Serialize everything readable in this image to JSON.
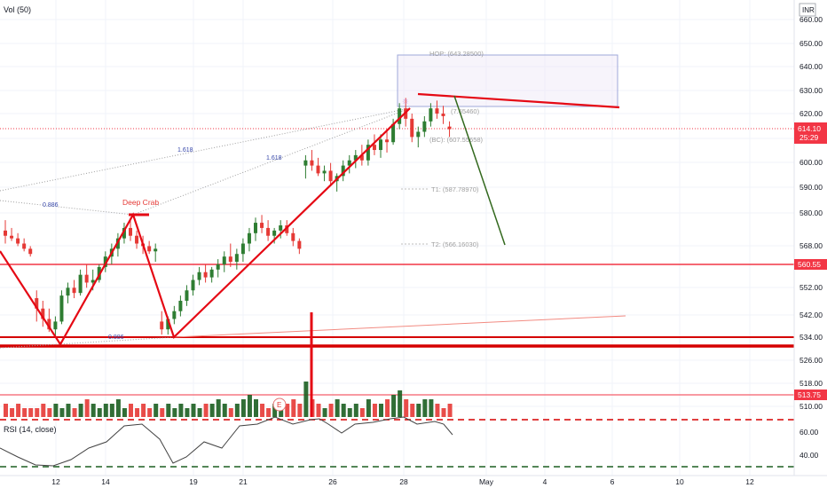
{
  "header": {
    "indicator_label": "Vol (50)"
  },
  "currency": "INR",
  "rsi_label": "RSI (14, close)",
  "price_axis": {
    "ticks": [
      "660.00",
      "650.00",
      "640.00",
      "630.00",
      "620.00",
      "610.00",
      "600.00",
      "590.00",
      "580.00",
      "568.00",
      "560.55",
      "552.00",
      "542.00",
      "534.00",
      "526.00",
      "518.00",
      "510.00"
    ],
    "rsi_ticks": [
      "60.00",
      "40.00"
    ]
  },
  "badges": {
    "last_price": "614.10",
    "countdown": "25:29",
    "support": "560.55",
    "volume_level": "513.75"
  },
  "date_axis": [
    "12",
    "14",
    "19",
    "21",
    "26",
    "28",
    "May",
    "4",
    "6",
    "10",
    "12"
  ],
  "annotations": {
    "pattern": "Deep Crab",
    "fib1": "1.618",
    "fib2": "1.618",
    "fib3": "0.886",
    "fib4": "0.886",
    "hop": "HOP: (643.28500)",
    "tp": "(7.65460)",
    "bc": "(BC): (607.55658)",
    "t1": "T1: (587.78970)",
    "t2": "T2: (566.16030)",
    "earnings": "E"
  },
  "colors": {
    "up": "#2e7d32",
    "down": "#e53935",
    "red_line": "#f23645",
    "forecast": "#33691e",
    "grid": "#f0f3fa",
    "badge": "#f23645"
  },
  "chart_data": {
    "type": "candlestick",
    "ylim": [
      522,
      664
    ],
    "candles": [
      {
        "o": 575,
        "h": 579,
        "l": 570,
        "c": 573
      },
      {
        "o": 573,
        "h": 576,
        "l": 571,
        "c": 572
      },
      {
        "o": 572,
        "h": 574,
        "l": 569,
        "c": 570
      },
      {
        "o": 570,
        "h": 572,
        "l": 567,
        "c": 568
      },
      {
        "o": 568,
        "h": 569,
        "l": 565,
        "c": 566
      },
      {
        "o": 549,
        "h": 552,
        "l": 540,
        "c": 545
      },
      {
        "o": 545,
        "h": 548,
        "l": 538,
        "c": 541
      },
      {
        "o": 541,
        "h": 545,
        "l": 536,
        "c": 537
      },
      {
        "o": 537,
        "h": 542,
        "l": 534,
        "c": 540
      },
      {
        "o": 540,
        "h": 552,
        "l": 539,
        "c": 550
      },
      {
        "o": 550,
        "h": 555,
        "l": 547,
        "c": 553
      },
      {
        "o": 553,
        "h": 556,
        "l": 549,
        "c": 551
      },
      {
        "o": 551,
        "h": 560,
        "l": 550,
        "c": 558
      },
      {
        "o": 558,
        "h": 562,
        "l": 553,
        "c": 555
      },
      {
        "o": 555,
        "h": 560,
        "l": 552,
        "c": 556
      },
      {
        "o": 556,
        "h": 562,
        "l": 555,
        "c": 561
      },
      {
        "o": 561,
        "h": 567,
        "l": 559,
        "c": 565
      },
      {
        "o": 565,
        "h": 570,
        "l": 562,
        "c": 568
      },
      {
        "o": 568,
        "h": 574,
        "l": 565,
        "c": 572
      },
      {
        "o": 572,
        "h": 578,
        "l": 570,
        "c": 576
      },
      {
        "o": 576,
        "h": 580,
        "l": 571,
        "c": 573
      },
      {
        "o": 573,
        "h": 575,
        "l": 568,
        "c": 570
      },
      {
        "o": 570,
        "h": 573,
        "l": 566,
        "c": 569
      },
      {
        "o": 569,
        "h": 571,
        "l": 566,
        "c": 567
      },
      {
        "o": 567,
        "h": 570,
        "l": 563,
        "c": 568
      },
      {
        "o": 540,
        "h": 544,
        "l": 535,
        "c": 537
      },
      {
        "o": 537,
        "h": 542,
        "l": 535,
        "c": 541
      },
      {
        "o": 541,
        "h": 546,
        "l": 539,
        "c": 544
      },
      {
        "o": 544,
        "h": 550,
        "l": 542,
        "c": 548
      },
      {
        "o": 548,
        "h": 554,
        "l": 546,
        "c": 552
      },
      {
        "o": 552,
        "h": 558,
        "l": 550,
        "c": 556
      },
      {
        "o": 556,
        "h": 561,
        "l": 554,
        "c": 559
      },
      {
        "o": 559,
        "h": 562,
        "l": 555,
        "c": 557
      },
      {
        "o": 557,
        "h": 561,
        "l": 555,
        "c": 560
      },
      {
        "o": 560,
        "h": 564,
        "l": 557,
        "c": 562
      },
      {
        "o": 562,
        "h": 567,
        "l": 559,
        "c": 565
      },
      {
        "o": 565,
        "h": 570,
        "l": 561,
        "c": 563
      },
      {
        "o": 563,
        "h": 568,
        "l": 560,
        "c": 566
      },
      {
        "o": 566,
        "h": 572,
        "l": 563,
        "c": 570
      },
      {
        "o": 570,
        "h": 576,
        "l": 567,
        "c": 574
      },
      {
        "o": 574,
        "h": 580,
        "l": 571,
        "c": 578
      },
      {
        "o": 578,
        "h": 581,
        "l": 574,
        "c": 576
      },
      {
        "o": 576,
        "h": 579,
        "l": 571,
        "c": 573
      },
      {
        "o": 573,
        "h": 576,
        "l": 570,
        "c": 575
      },
      {
        "o": 575,
        "h": 579,
        "l": 572,
        "c": 577
      },
      {
        "o": 577,
        "h": 579,
        "l": 573,
        "c": 574
      },
      {
        "o": 574,
        "h": 576,
        "l": 569,
        "c": 571
      },
      {
        "o": 571,
        "h": 572,
        "l": 566,
        "c": 568
      },
      {
        "o": 600,
        "h": 604,
        "l": 595,
        "c": 602
      },
      {
        "o": 602,
        "h": 606,
        "l": 598,
        "c": 600
      },
      {
        "o": 600,
        "h": 603,
        "l": 596,
        "c": 597
      },
      {
        "o": 597,
        "h": 600,
        "l": 594,
        "c": 598
      },
      {
        "o": 598,
        "h": 601,
        "l": 592,
        "c": 594
      },
      {
        "o": 594,
        "h": 597,
        "l": 590,
        "c": 596
      },
      {
        "o": 596,
        "h": 602,
        "l": 594,
        "c": 600
      },
      {
        "o": 600,
        "h": 604,
        "l": 597,
        "c": 602
      },
      {
        "o": 602,
        "h": 606,
        "l": 599,
        "c": 604
      },
      {
        "o": 604,
        "h": 608,
        "l": 600,
        "c": 602
      },
      {
        "o": 602,
        "h": 610,
        "l": 600,
        "c": 608
      },
      {
        "o": 608,
        "h": 612,
        "l": 604,
        "c": 606
      },
      {
        "o": 606,
        "h": 612,
        "l": 603,
        "c": 610
      },
      {
        "o": 610,
        "h": 614,
        "l": 605,
        "c": 609
      },
      {
        "o": 609,
        "h": 618,
        "l": 608,
        "c": 616
      },
      {
        "o": 616,
        "h": 624,
        "l": 614,
        "c": 622
      },
      {
        "o": 622,
        "h": 626,
        "l": 615,
        "c": 618
      },
      {
        "o": 618,
        "h": 620,
        "l": 609,
        "c": 611
      },
      {
        "o": 611,
        "h": 615,
        "l": 607,
        "c": 613
      },
      {
        "o": 613,
        "h": 619,
        "l": 611,
        "c": 617
      },
      {
        "o": 617,
        "h": 624,
        "l": 615,
        "c": 622
      },
      {
        "o": 622,
        "h": 625,
        "l": 618,
        "c": 620
      },
      {
        "o": 620,
        "h": 623,
        "l": 616,
        "c": 619
      },
      {
        "o": 615,
        "h": 617,
        "l": 611,
        "c": 614
      }
    ],
    "volumes": [
      3,
      2,
      3,
      2,
      2,
      2,
      3,
      2,
      3,
      2,
      3,
      2,
      3,
      4,
      3,
      2,
      3,
      3,
      4,
      2,
      3,
      2,
      3,
      2,
      3,
      2,
      3,
      2,
      3,
      2,
      3,
      2,
      3,
      3,
      4,
      3,
      2,
      3,
      4,
      5,
      4,
      3,
      2,
      3,
      2,
      3,
      4,
      3,
      8,
      4,
      3,
      2,
      3,
      4,
      3,
      2,
      3,
      2,
      4,
      3,
      3,
      4,
      5,
      6,
      4,
      3,
      3,
      4,
      4,
      3,
      2,
      3
    ]
  }
}
